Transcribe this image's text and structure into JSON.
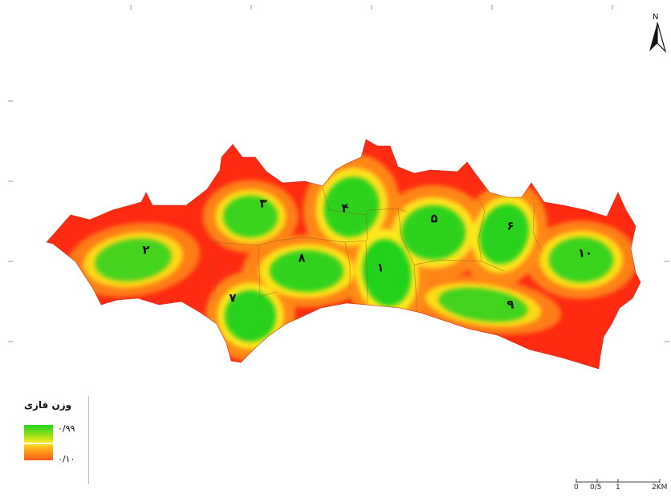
{
  "map": {
    "districts": [
      {
        "id": 1,
        "label": "۱",
        "weight": 0.99
      },
      {
        "id": 2,
        "label": "۲",
        "weight": 0.8
      },
      {
        "id": 3,
        "label": "۳",
        "weight": 0.85
      },
      {
        "id": 4,
        "label": "۴",
        "weight": 0.9
      },
      {
        "id": 5,
        "label": "۵",
        "weight": 0.9
      },
      {
        "id": 6,
        "label": "۶",
        "weight": 0.92
      },
      {
        "id": 7,
        "label": "۷",
        "weight": 0.92
      },
      {
        "id": 8,
        "label": "۸",
        "weight": 0.88
      },
      {
        "id": 9,
        "label": "۹",
        "weight": 0.82
      },
      {
        "id": 10,
        "label": "۱۰",
        "weight": 0.85
      }
    ],
    "colors": {
      "high": "#24d21c",
      "mid": "#ffe81a",
      "low": "#ff2a12"
    }
  },
  "legend": {
    "title": "وزن فازی",
    "high_label": "۰/۹۹",
    "low_label": "۰/۱۰"
  },
  "north": {
    "letter": "N"
  },
  "scalebar": {
    "labels": [
      "0",
      "0/5",
      "1",
      "2KM"
    ]
  }
}
